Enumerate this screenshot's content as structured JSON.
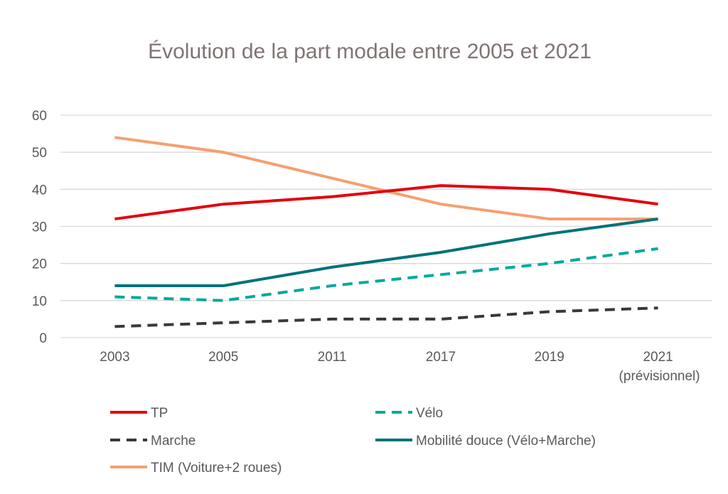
{
  "chart_data": {
    "type": "line",
    "title": "Évolution de la part modale entre 2005 et 2021",
    "xlabel": "",
    "ylabel": "",
    "categories": [
      "2003",
      "2005",
      "2011",
      "2017",
      "2019",
      "2021"
    ],
    "category_sublabels": [
      "",
      "",
      "",
      "",
      "",
      "(prévisionnel)"
    ],
    "ylim": [
      0,
      60
    ],
    "yticks": [
      0,
      10,
      20,
      30,
      40,
      50,
      60
    ],
    "grid": true,
    "legend_position": "bottom",
    "series": [
      {
        "name": "TP",
        "values": [
          32,
          36,
          38,
          41,
          40,
          36
        ],
        "color": "#e3000f",
        "dash": false
      },
      {
        "name": "Vélo",
        "values": [
          11,
          10,
          14,
          17,
          20,
          24
        ],
        "color": "#00a99d",
        "dash": true
      },
      {
        "name": "Marche",
        "values": [
          3,
          4,
          5,
          5,
          7,
          8
        ],
        "color": "#3b3838",
        "dash": true
      },
      {
        "name": "Mobilité douce (Vélo+Marche)",
        "values": [
          14,
          14,
          19,
          23,
          28,
          32
        ],
        "color": "#00727a",
        "dash": false
      },
      {
        "name": "TIM (Voiture+2 roues)",
        "values": [
          54,
          50,
          43,
          36,
          32,
          32
        ],
        "color": "#f4a070",
        "dash": false
      }
    ]
  }
}
